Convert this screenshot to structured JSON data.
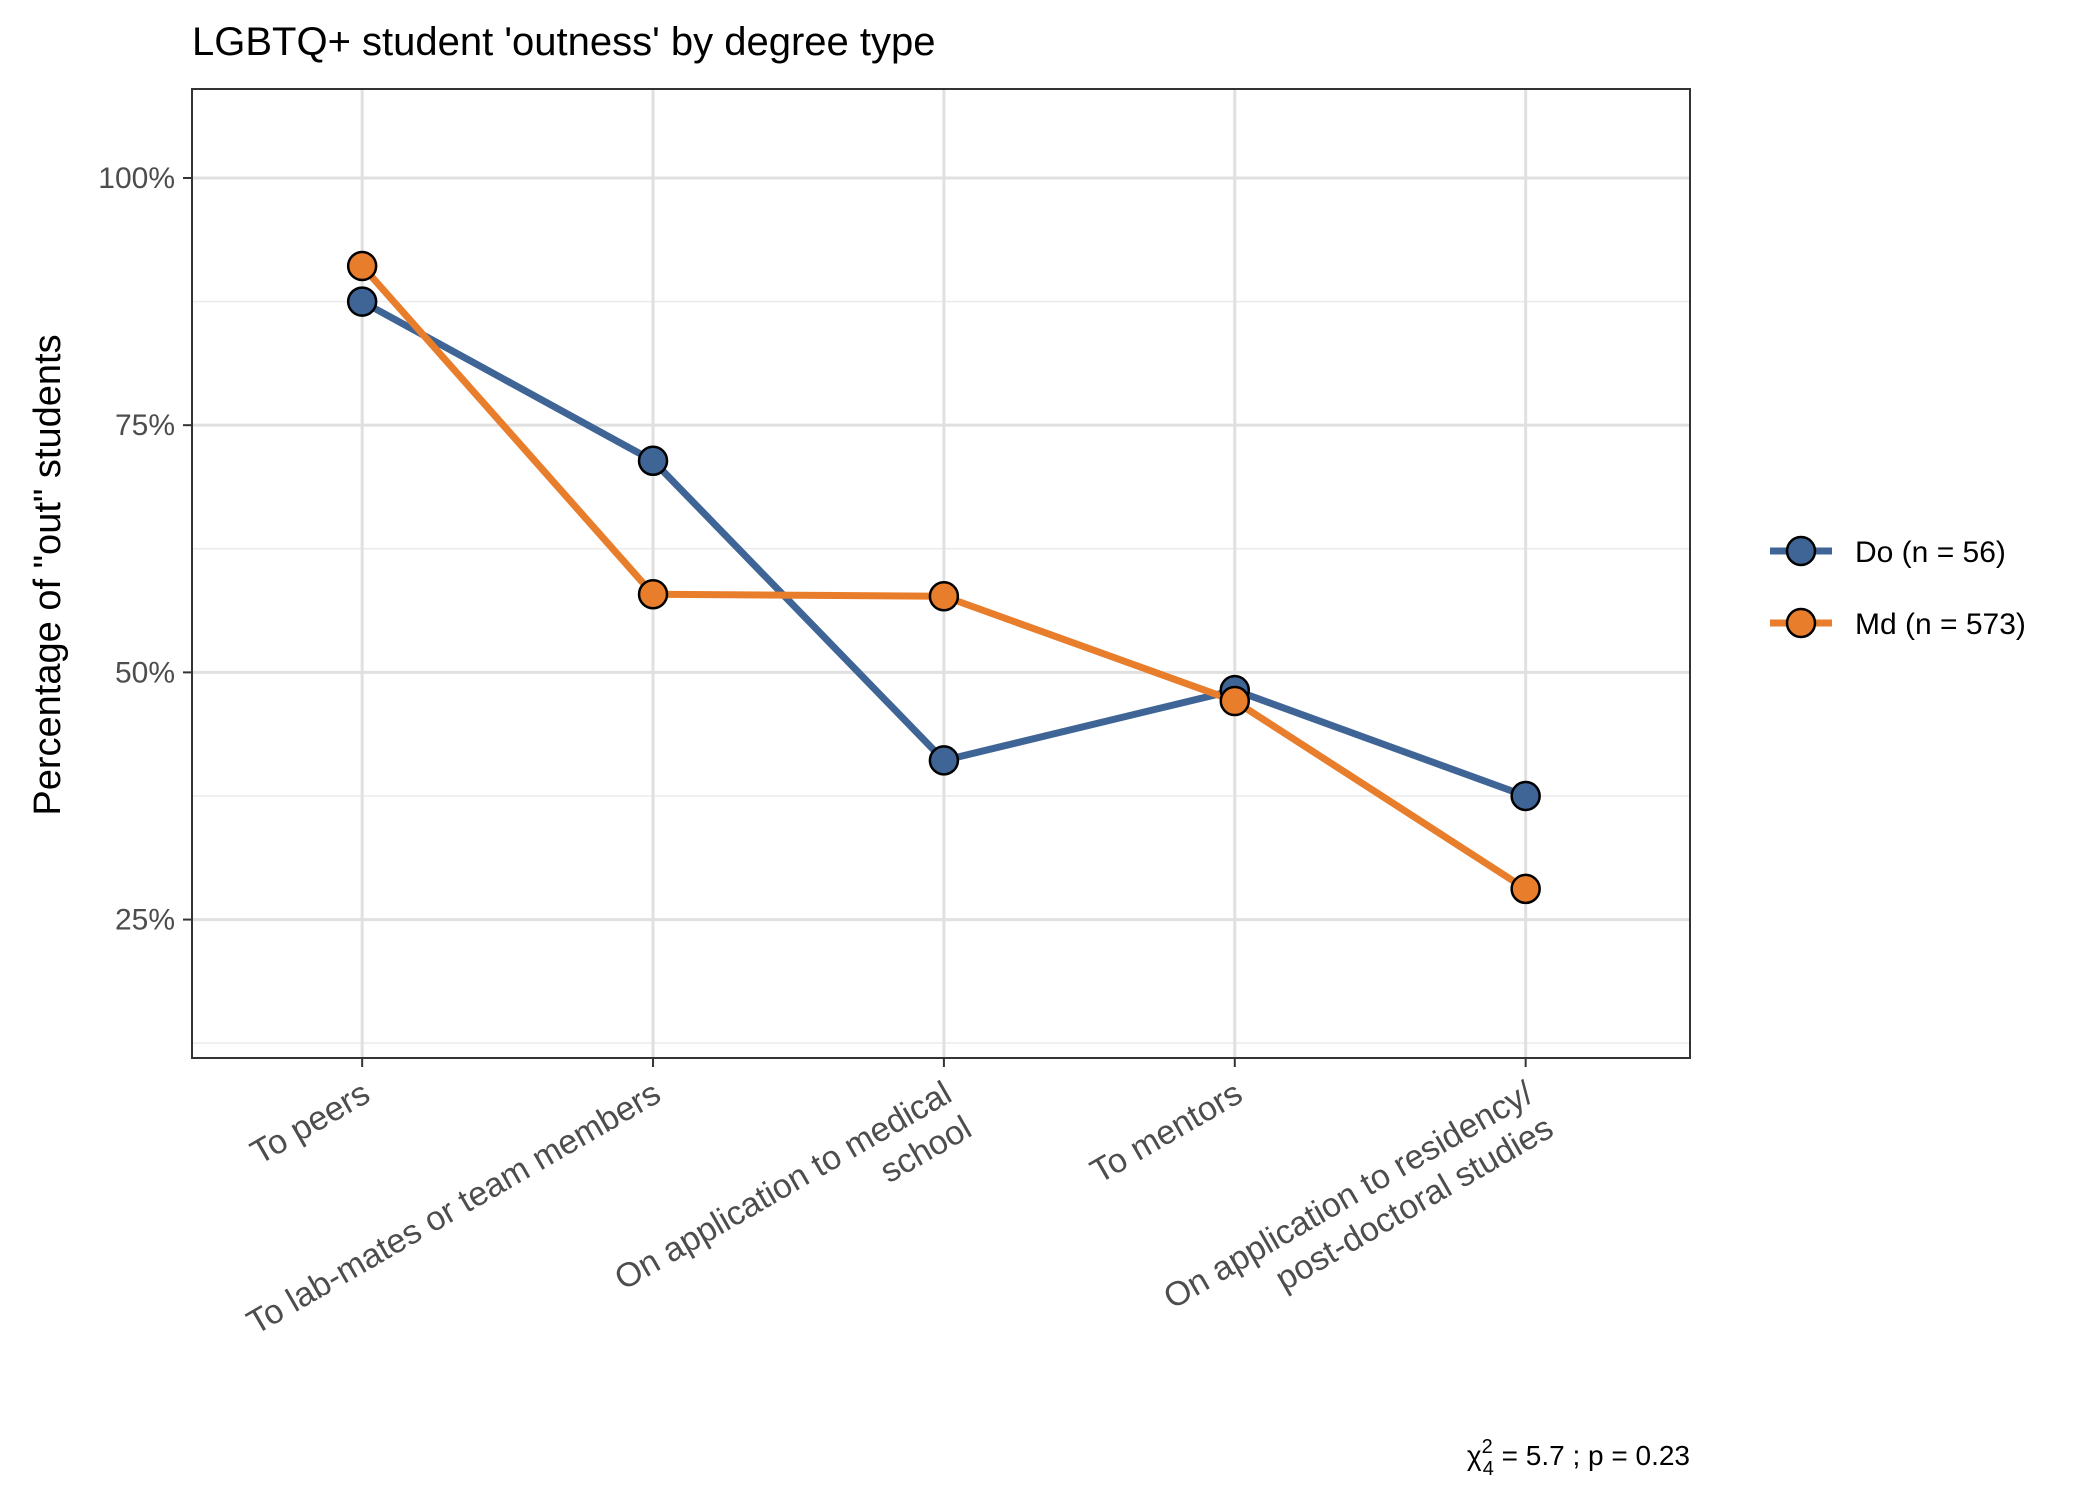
{
  "chart_data": {
    "type": "line",
    "title": "LGBTQ+ student 'outness' by degree type",
    "xlabel": "",
    "ylabel": "Percentage of \"out\" students",
    "ylim": [
      0.11,
      1.09
    ],
    "y_ticks": [
      0.25,
      0.5,
      0.75,
      1.0
    ],
    "y_tick_labels": [
      "25%",
      "50%",
      "75%",
      "100%"
    ],
    "categories": [
      [
        "To peers"
      ],
      [
        "To lab-mates or team members"
      ],
      [
        "On application to medical",
        "school"
      ],
      [
        "To mentors"
      ],
      [
        "On application to residency/",
        "post-doctoral studies"
      ]
    ],
    "series": [
      {
        "name": "Do (n = 56)",
        "color": "#3f6496",
        "values": [
          0.875,
          0.714,
          0.411,
          0.482,
          0.375
        ]
      },
      {
        "name": "Md (n = 573)",
        "color": "#e87d2b",
        "values": [
          0.911,
          0.579,
          0.577,
          0.471,
          0.281
        ]
      }
    ],
    "grid": true,
    "legend_position": "right",
    "annotation": {
      "chi_symbol": "χ",
      "sup": "2",
      "sub": "4",
      "text": " = 5.7 ;  p = 0.23"
    }
  }
}
